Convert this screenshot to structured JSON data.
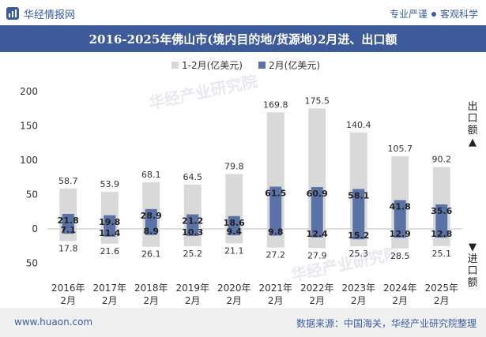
{
  "header": {
    "brand_name": "华经情报网",
    "logo_icon": "chart-logo-icon",
    "slogan_left": "专业严谨",
    "slogan_right": "客观科学"
  },
  "title": "2016-2025年佛山市(境内目的地/货源地)2月进、出口额",
  "watermark": "华经产业研究院",
  "footer": {
    "url": "www.huaon.com",
    "source": "数据来源：中国海关，华经产业研究院整理"
  },
  "side_labels": {
    "export_label": "出口额",
    "export_arrow": "▲",
    "import_label": "进口额",
    "import_arrow": "▼"
  },
  "colors": {
    "header_bg": "#3d5a9b",
    "total_bar": "#d9d9d9",
    "feb_bar": "#5b72a6"
  },
  "chart_data": {
    "type": "bar",
    "categories": [
      "2016年2月",
      "2017年2月",
      "2018年2月",
      "2019年2月",
      "2020年2月",
      "2021年2月",
      "2022年2月",
      "2023年2月",
      "2024年2月",
      "2025年2月"
    ],
    "ylim": [
      -50,
      200
    ],
    "yticks": [
      -50,
      0,
      50,
      100,
      150,
      200
    ],
    "ytick_labels": [
      "50",
      "0",
      "50",
      "100",
      "150",
      "200"
    ],
    "legend_position": "top",
    "grid": false,
    "series": [
      {
        "name": "1-2月(亿美元)",
        "export": [
          58.7,
          53.9,
          68.1,
          64.5,
          79.8,
          169.8,
          175.5,
          140.4,
          105.7,
          90.2
        ],
        "import": [
          17.8,
          21.6,
          26.1,
          25.2,
          21.1,
          27.2,
          27.9,
          25.3,
          28.5,
          25.1
        ]
      },
      {
        "name": "2月(亿美元)",
        "export": [
          21.8,
          19.8,
          28.9,
          21.2,
          18.6,
          61.5,
          60.9,
          58.1,
          41.8,
          35.6
        ],
        "import": [
          7.1,
          11.4,
          8.9,
          10.3,
          9.4,
          9.8,
          12.4,
          15.2,
          12.9,
          12.8
        ]
      }
    ]
  }
}
